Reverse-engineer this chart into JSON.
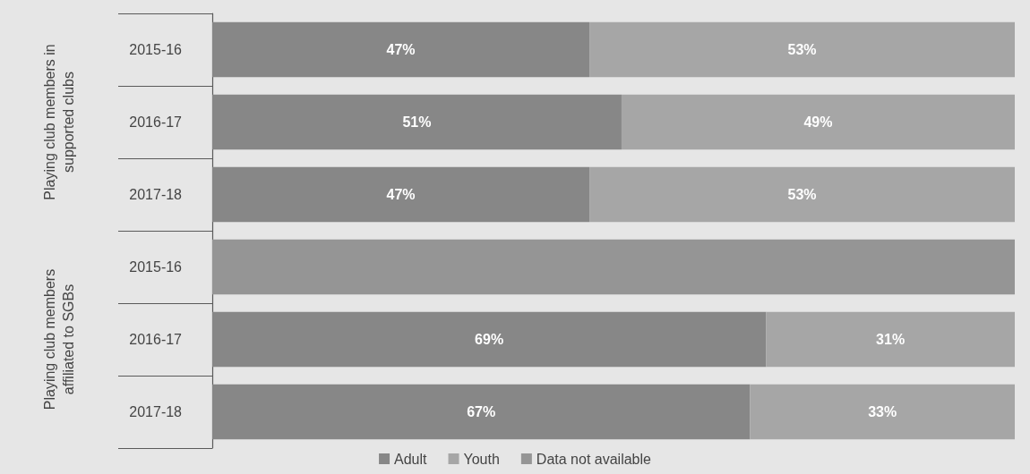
{
  "chart_data": [
    {
      "type": "bar",
      "orientation": "horizontal",
      "stacked": true,
      "ylabel": "Playing club members in supported clubs",
      "categories": [
        "2015-16",
        "2016-17",
        "2017-18"
      ],
      "xlim": [
        0,
        100
      ],
      "tick_labels": "y",
      "series": [
        {
          "color": "#878787",
          "values": [
            47,
            51,
            47
          ],
          "value_labels": [
            "47%",
            "51%",
            "47%"
          ]
        },
        {
          "color": "#a6a6a6",
          "values": [
            53,
            49,
            53
          ],
          "value_labels": [
            "53%",
            "49%",
            "53%"
          ]
        }
      ]
    },
    {
      "type": "bar",
      "orientation": "horizontal",
      "stacked": true,
      "ylabel": "Playing club members affiliated to SGBs",
      "categories": [
        "2015-16",
        "2016-17",
        "2017-18"
      ],
      "xlim": [
        0,
        100
      ],
      "tick_labels": "y",
      "legend": "bottom",
      "series": [
        {
          "name": "Adult",
          "color": "#878787",
          "values": [
            null,
            69,
            67
          ],
          "value_labels": [
            null,
            "69%",
            "67%"
          ]
        },
        {
          "name": "Youth",
          "color": "#a6a6a6",
          "values": [
            null,
            31,
            33
          ],
          "value_labels": [
            null,
            "31%",
            "33%"
          ]
        },
        {
          "name": "Data not available",
          "color": "#959595",
          "values": [
            100,
            null,
            null
          ]
        }
      ]
    }
  ]
}
